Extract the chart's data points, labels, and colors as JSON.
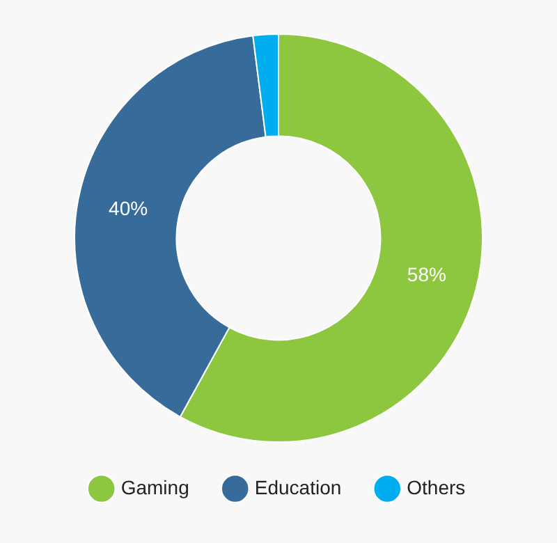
{
  "chart_data": {
    "type": "donut",
    "categories": [
      "Gaming",
      "Education",
      "Others"
    ],
    "values": [
      58,
      40,
      2
    ],
    "colors": [
      "#8dc63f",
      "#376b9a",
      "#00aeef"
    ],
    "value_labels": [
      "58%",
      "40%",
      null
    ],
    "legend": "bottom"
  }
}
